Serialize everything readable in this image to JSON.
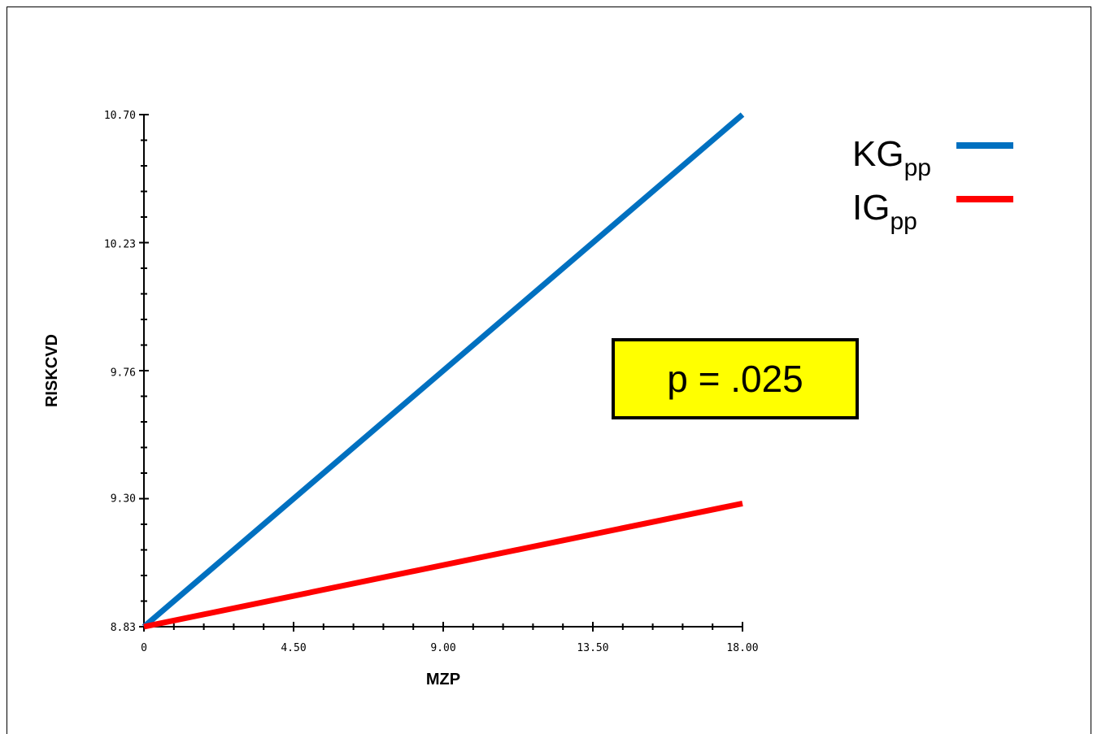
{
  "chart_data": {
    "type": "line",
    "xlabel": "MZP",
    "ylabel": "RISKCVD",
    "xlim": [
      0,
      18
    ],
    "ylim": [
      8.83,
      10.7
    ],
    "x_ticks": [
      "0",
      "4.50",
      "9.00",
      "13.50",
      "18.00"
    ],
    "x_tick_values": [
      0,
      4.5,
      9,
      13.5,
      18
    ],
    "y_ticks": [
      "8.83",
      "9.30",
      "9.76",
      "10.23",
      "10.70"
    ],
    "y_tick_values": [
      8.83,
      9.3,
      9.76,
      10.23,
      10.7
    ],
    "series": [
      {
        "name": "KG",
        "name_sub": "pp",
        "color": "#0070c0",
        "x": [
          0,
          18
        ],
        "y": [
          8.83,
          10.7
        ]
      },
      {
        "name": "IG",
        "name_sub": "pp",
        "color": "#ff0000",
        "x": [
          0,
          18
        ],
        "y": [
          8.83,
          9.28
        ]
      }
    ],
    "legend_position": "top-right",
    "annotation": "p = .025",
    "annotation_bg": "#ffff00"
  }
}
